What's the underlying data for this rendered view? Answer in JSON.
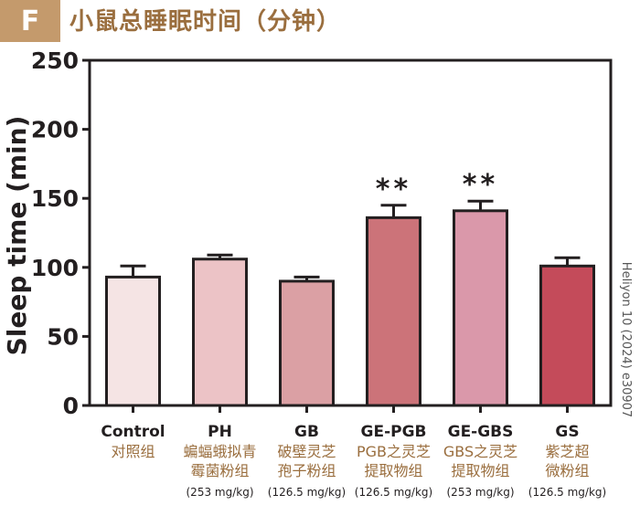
{
  "panel_label": "F",
  "chart_data": {
    "type": "bar",
    "title": "小鼠总睡眠时间（分钟）",
    "ylabel": "Sleep time (min)",
    "xlabel": "",
    "ylim": [
      0,
      250
    ],
    "yticks": [
      0,
      50,
      100,
      150,
      200,
      250
    ],
    "grid": false,
    "categories": [
      "Control",
      "PH",
      "GB",
      "GE-PGB",
      "GE-GBS",
      "GS"
    ],
    "category_descriptions": [
      [
        "对照组"
      ],
      [
        "蝙蝠蛾拟青",
        "霉菌粉组"
      ],
      [
        "破壁灵芝",
        "孢子粉组"
      ],
      [
        "PGB之灵芝",
        "提取物组"
      ],
      [
        "GBS之灵芝",
        "提取物组"
      ],
      [
        "紫芝超",
        "微粉组"
      ]
    ],
    "doses": [
      "",
      "(253 mg/kg)",
      "(126.5 mg/kg)",
      "(126.5 mg/kg)",
      "(253 mg/kg)",
      "(126.5 mg/kg)"
    ],
    "values": [
      93,
      106,
      90,
      136,
      141,
      101
    ],
    "errors": [
      8,
      3,
      3,
      9,
      7,
      6
    ],
    "significance": [
      "",
      "",
      "",
      "**",
      "**",
      ""
    ],
    "colors": [
      "#f5e4e4",
      "#ecc3c6",
      "#dba0a4",
      "#cc7379",
      "#da98aa",
      "#c44b5a"
    ]
  },
  "side_note": "Heliyon 10 (2024) e30907"
}
